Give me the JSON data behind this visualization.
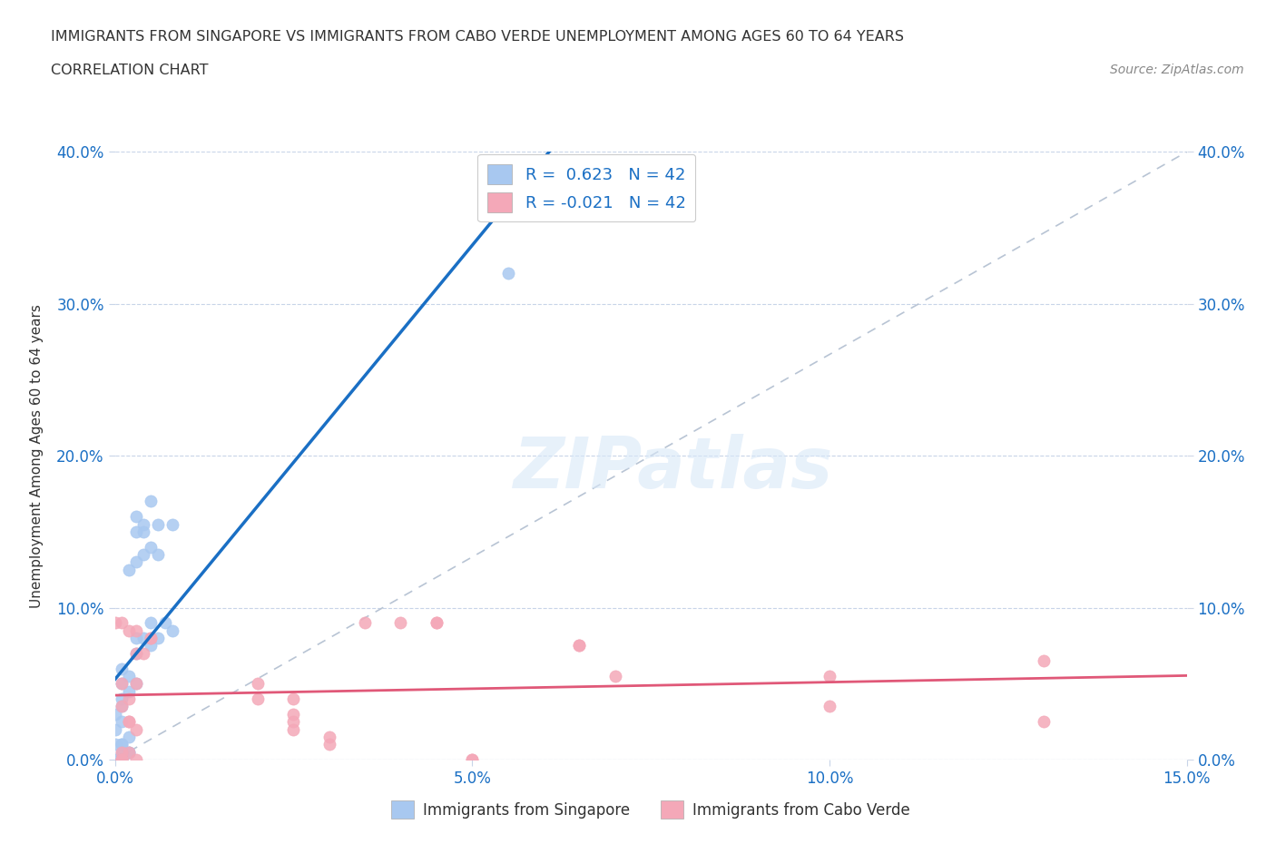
{
  "title_line1": "IMMIGRANTS FROM SINGAPORE VS IMMIGRANTS FROM CABO VERDE UNEMPLOYMENT AMONG AGES 60 TO 64 YEARS",
  "title_line2": "CORRELATION CHART",
  "source_text": "Source: ZipAtlas.com",
  "watermark": "ZIPatlas",
  "ylabel": "Unemployment Among Ages 60 to 64 years",
  "xlim": [
    0.0,
    0.15
  ],
  "ylim": [
    0.0,
    0.4
  ],
  "xtick_values": [
    0.0,
    0.05,
    0.1,
    0.15
  ],
  "xtick_labels": [
    "0.0%",
    "5.0%",
    "10.0%",
    "15.0%"
  ],
  "ytick_values": [
    0.0,
    0.1,
    0.2,
    0.3,
    0.4
  ],
  "ytick_labels": [
    "0.0%",
    "10.0%",
    "20.0%",
    "30.0%",
    "40.0%"
  ],
  "ytick_labels_right": [
    "40.0%",
    "30.0%",
    "20.0%",
    "10.0%",
    "0.0%"
  ],
  "singapore_color": "#a8c8f0",
  "cabo_verde_color": "#f4a8b8",
  "singapore_line_color": "#1a6fc4",
  "cabo_verde_line_color": "#e05878",
  "diagonal_line_color": "#b8c4d4",
  "singapore_scatter_x": [
    0.005,
    0.003,
    0.004,
    0.008,
    0.006,
    0.004,
    0.003,
    0.005,
    0.006,
    0.004,
    0.003,
    0.002,
    0.007,
    0.005,
    0.008,
    0.006,
    0.003,
    0.004,
    0.005,
    0.003,
    0.001,
    0.002,
    0.003,
    0.001,
    0.002,
    0.001,
    0.001,
    0.0,
    0.001,
    0.0,
    0.002,
    0.001,
    0.001,
    0.0,
    0.001,
    0.002,
    0.001,
    0.0,
    0.001,
    0.055,
    0.002,
    0.001
  ],
  "singapore_scatter_y": [
    0.17,
    0.16,
    0.155,
    0.155,
    0.155,
    0.15,
    0.15,
    0.14,
    0.135,
    0.135,
    0.13,
    0.125,
    0.09,
    0.09,
    0.085,
    0.08,
    0.08,
    0.08,
    0.075,
    0.07,
    0.06,
    0.055,
    0.05,
    0.05,
    0.045,
    0.04,
    0.035,
    0.03,
    0.025,
    0.02,
    0.015,
    0.01,
    0.01,
    0.01,
    0.005,
    0.005,
    0.0,
    0.0,
    0.0,
    0.32,
    0.005,
    0.003
  ],
  "cabo_verde_scatter_x": [
    0.0,
    0.001,
    0.002,
    0.003,
    0.001,
    0.003,
    0.002,
    0.001,
    0.002,
    0.003,
    0.005,
    0.005,
    0.003,
    0.004,
    0.035,
    0.04,
    0.045,
    0.045,
    0.065,
    0.065,
    0.07,
    0.02,
    0.02,
    0.025,
    0.025,
    0.025,
    0.025,
    0.03,
    0.03,
    0.05,
    0.05,
    0.1,
    0.1,
    0.13,
    0.13,
    0.002,
    0.002,
    0.001,
    0.001,
    0.001,
    0.001,
    0.003
  ],
  "cabo_verde_scatter_y": [
    0.09,
    0.09,
    0.085,
    0.085,
    0.05,
    0.05,
    0.04,
    0.035,
    0.025,
    0.02,
    0.08,
    0.08,
    0.07,
    0.07,
    0.09,
    0.09,
    0.09,
    0.09,
    0.075,
    0.075,
    0.055,
    0.05,
    0.04,
    0.04,
    0.03,
    0.025,
    0.02,
    0.015,
    0.01,
    0.0,
    0.0,
    0.055,
    0.035,
    0.065,
    0.025,
    0.025,
    0.005,
    0.005,
    0.0,
    0.0,
    0.0,
    0.0
  ]
}
